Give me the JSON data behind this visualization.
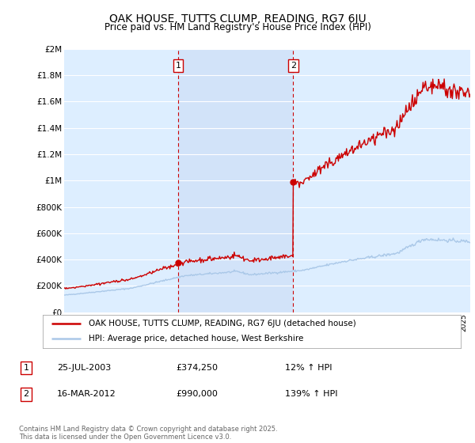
{
  "title": "OAK HOUSE, TUTTS CLUMP, READING, RG7 6JU",
  "subtitle": "Price paid vs. HM Land Registry's House Price Index (HPI)",
  "legend_line1": "OAK HOUSE, TUTTS CLUMP, READING, RG7 6JU (detached house)",
  "legend_line2": "HPI: Average price, detached house, West Berkshire",
  "table_row1": [
    "1",
    "25-JUL-2003",
    "£374,250",
    "12% ↑ HPI"
  ],
  "table_row2": [
    "2",
    "16-MAR-2012",
    "£990,000",
    "139% ↑ HPI"
  ],
  "footer": "Contains HM Land Registry data © Crown copyright and database right 2025.\nThis data is licensed under the Open Government Licence v3.0.",
  "hpi_color": "#aac8e8",
  "price_color": "#cc0000",
  "vline_color": "#cc0000",
  "bg_color": "#ddeeff",
  "shade_color": "#ccddf5",
  "grid_color": "#ffffff",
  "ylim": [
    0,
    2000000
  ],
  "yticks": [
    0,
    200000,
    400000,
    600000,
    800000,
    1000000,
    1200000,
    1400000,
    1600000,
    1800000,
    2000000
  ],
  "sale1_x": 2003.56,
  "sale1_y": 374250,
  "sale2_x": 2012.21,
  "sale2_y": 990000,
  "xmin": 1995,
  "xmax": 2025.5
}
